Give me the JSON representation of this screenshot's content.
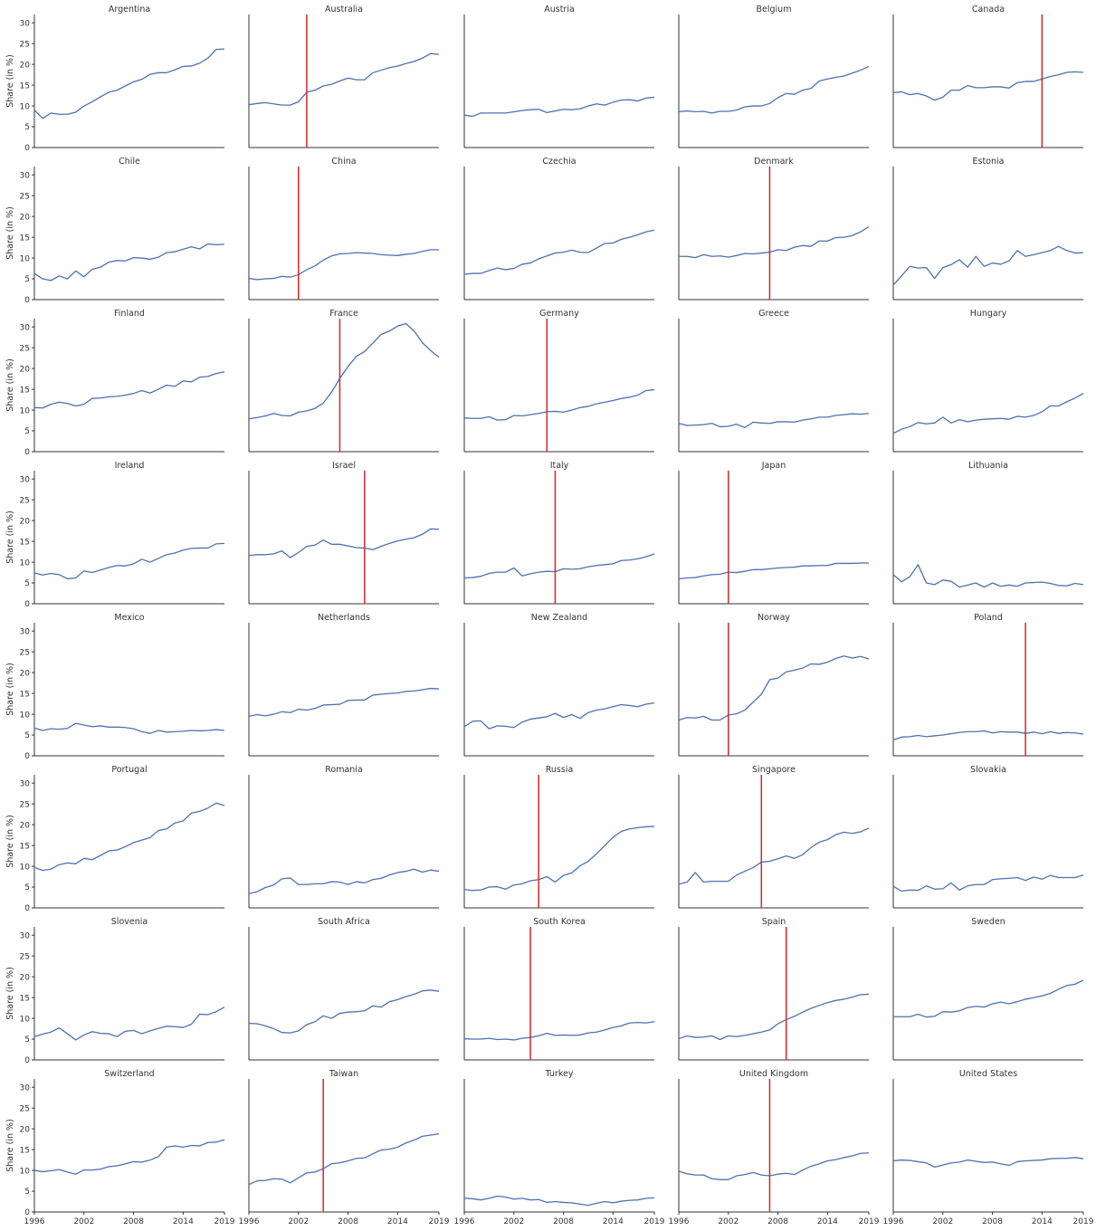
{
  "chart_data": {
    "type": "line",
    "layout": "small-multiples",
    "title": "",
    "xlabel": "",
    "ylabel": "Share (in %)",
    "xlim": [
      1996,
      2019
    ],
    "ylim": [
      0,
      32
    ],
    "xticks": [
      1996,
      2002,
      2008,
      2014,
      2019
    ],
    "yticks": [
      0,
      5,
      10,
      15,
      20,
      25,
      30
    ],
    "grid": false,
    "colors": {
      "line": "#4c72b0",
      "marker_line": "#d62728",
      "axis": "#333333",
      "text": "#333333"
    },
    "x": [
      1996,
      1997,
      1998,
      1999,
      2000,
      2001,
      2002,
      2003,
      2004,
      2005,
      2006,
      2007,
      2008,
      2009,
      2010,
      2011,
      2012,
      2013,
      2014,
      2015,
      2016,
      2017,
      2018,
      2019
    ],
    "panels": [
      {
        "name": "Argentina",
        "marker_year": null,
        "values": [
          9.0,
          7.0,
          8.3,
          8.0,
          8.0,
          8.5,
          10.0,
          11.0,
          12.2,
          13.3,
          13.8,
          14.8,
          15.8,
          16.4,
          17.6,
          18.0,
          18.0,
          18.7,
          19.5,
          19.6,
          20.3,
          21.5,
          23.6,
          23.7
        ]
      },
      {
        "name": "Australia",
        "marker_year": 2003,
        "values": [
          10.3,
          10.6,
          10.8,
          10.5,
          10.2,
          10.2,
          11.0,
          13.3,
          13.8,
          14.8,
          15.2,
          16.0,
          16.7,
          16.3,
          16.3,
          18.0,
          18.6,
          19.2,
          19.6,
          20.2,
          20.7,
          21.5,
          22.6,
          22.4
        ]
      },
      {
        "name": "Austria",
        "marker_year": null,
        "values": [
          7.8,
          7.5,
          8.3,
          8.3,
          8.3,
          8.3,
          8.6,
          8.9,
          9.1,
          9.2,
          8.4,
          8.8,
          9.2,
          9.1,
          9.3,
          10.0,
          10.5,
          10.2,
          10.9,
          11.4,
          11.5,
          11.2,
          11.9,
          12.1
        ]
      },
      {
        "name": "Belgium",
        "marker_year": null,
        "values": [
          8.6,
          8.8,
          8.6,
          8.7,
          8.3,
          8.7,
          8.7,
          9.0,
          9.8,
          10.0,
          10.0,
          10.6,
          12.0,
          13.0,
          12.8,
          13.8,
          14.2,
          16.0,
          16.5,
          16.9,
          17.2,
          17.9,
          18.6,
          19.5
        ]
      },
      {
        "name": "Canada",
        "marker_year": 2014,
        "values": [
          13.2,
          13.4,
          12.7,
          13.0,
          12.4,
          11.4,
          12.1,
          13.8,
          13.8,
          14.9,
          14.4,
          14.4,
          14.6,
          14.6,
          14.3,
          15.6,
          15.9,
          15.9,
          16.5,
          17.1,
          17.5,
          18.1,
          18.2,
          18.1
        ]
      },
      {
        "name": "Chile",
        "marker_year": null,
        "values": [
          6.3,
          5.0,
          4.6,
          5.7,
          5.0,
          6.9,
          5.5,
          7.3,
          7.8,
          9.0,
          9.4,
          9.3,
          10.1,
          10.0,
          9.7,
          10.2,
          11.3,
          11.5,
          12.1,
          12.7,
          12.2,
          13.4,
          13.2,
          13.3
        ]
      },
      {
        "name": "China",
        "marker_year": 2002,
        "values": [
          5.1,
          4.8,
          5.0,
          5.1,
          5.6,
          5.4,
          6.0,
          7.2,
          8.1,
          9.5,
          10.5,
          11.0,
          11.1,
          11.3,
          11.2,
          11.1,
          10.8,
          10.7,
          10.6,
          10.9,
          11.1,
          11.6,
          12.0,
          12.0
        ]
      },
      {
        "name": "Czechia",
        "marker_year": null,
        "values": [
          6.1,
          6.3,
          6.3,
          7.0,
          7.6,
          7.2,
          7.5,
          8.5,
          8.8,
          9.8,
          10.5,
          11.2,
          11.4,
          11.9,
          11.4,
          11.3,
          12.4,
          13.5,
          13.6,
          14.5,
          15.0,
          15.6,
          16.3,
          16.7
        ]
      },
      {
        "name": "Denmark",
        "marker_year": 2007,
        "values": [
          10.4,
          10.4,
          10.1,
          10.8,
          10.4,
          10.5,
          10.2,
          10.6,
          11.1,
          11.0,
          11.2,
          11.4,
          12.0,
          11.8,
          12.6,
          13.0,
          12.8,
          14.1,
          14.1,
          14.9,
          15.0,
          15.4,
          16.3,
          17.5
        ]
      },
      {
        "name": "Estonia",
        "marker_year": null,
        "values": [
          3.5,
          5.7,
          8.0,
          7.6,
          7.7,
          5.1,
          7.7,
          8.4,
          9.6,
          7.8,
          10.4,
          8.0,
          8.8,
          8.5,
          9.3,
          11.8,
          10.4,
          10.8,
          11.3,
          11.8,
          12.8,
          11.8,
          11.2,
          11.3
        ]
      },
      {
        "name": "Finland",
        "marker_year": null,
        "values": [
          10.6,
          10.5,
          11.4,
          11.9,
          11.6,
          11.0,
          11.4,
          12.8,
          12.9,
          13.2,
          13.3,
          13.6,
          14.0,
          14.7,
          14.1,
          15.0,
          16.0,
          15.7,
          17.0,
          16.8,
          17.9,
          18.1,
          18.8,
          19.2
        ]
      },
      {
        "name": "France",
        "marker_year": 2007,
        "values": [
          7.9,
          8.2,
          8.6,
          9.2,
          8.7,
          8.6,
          9.5,
          9.8,
          10.4,
          11.7,
          14.3,
          17.6,
          20.5,
          22.9,
          24.1,
          26.1,
          28.2,
          29.0,
          30.2,
          30.8,
          29.0,
          26.2,
          24.3,
          22.7
        ]
      },
      {
        "name": "Germany",
        "marker_year": 2006,
        "values": [
          8.1,
          8.0,
          8.0,
          8.4,
          7.6,
          7.7,
          8.7,
          8.6,
          8.9,
          9.2,
          9.6,
          9.7,
          9.5,
          10.0,
          10.6,
          10.9,
          11.5,
          11.9,
          12.3,
          12.8,
          13.1,
          13.6,
          14.7,
          14.9
        ]
      },
      {
        "name": "Greece",
        "marker_year": null,
        "values": [
          6.8,
          6.3,
          6.4,
          6.5,
          6.8,
          6.0,
          6.1,
          6.6,
          5.8,
          7.1,
          6.9,
          6.8,
          7.2,
          7.2,
          7.1,
          7.6,
          7.9,
          8.3,
          8.3,
          8.7,
          8.9,
          9.1,
          9.0,
          9.2
        ]
      },
      {
        "name": "Hungary",
        "marker_year": null,
        "values": [
          4.4,
          5.4,
          6.0,
          7.0,
          6.7,
          6.9,
          8.3,
          6.9,
          7.7,
          7.2,
          7.6,
          7.8,
          7.9,
          8.0,
          7.8,
          8.5,
          8.3,
          8.7,
          9.6,
          11.0,
          11.0,
          12.0,
          12.9,
          14.0
        ]
      },
      {
        "name": "Ireland",
        "marker_year": null,
        "values": [
          7.4,
          6.9,
          7.3,
          7.0,
          6.0,
          6.2,
          7.9,
          7.5,
          8.1,
          8.7,
          9.2,
          9.1,
          9.6,
          10.7,
          10.0,
          10.9,
          11.8,
          12.2,
          12.9,
          13.3,
          13.4,
          13.4,
          14.4,
          14.5
        ]
      },
      {
        "name": "Israel",
        "marker_year": 2010,
        "values": [
          11.6,
          11.8,
          11.8,
          12.0,
          12.7,
          11.1,
          12.3,
          13.8,
          14.1,
          15.3,
          14.3,
          14.3,
          13.9,
          13.5,
          13.4,
          13.0,
          13.8,
          14.5,
          15.1,
          15.5,
          15.9,
          16.7,
          18.0,
          17.9
        ]
      },
      {
        "name": "Italy",
        "marker_year": 2007,
        "values": [
          6.2,
          6.3,
          6.6,
          7.3,
          7.6,
          7.6,
          8.6,
          6.7,
          7.2,
          7.6,
          7.8,
          7.7,
          8.4,
          8.3,
          8.4,
          8.9,
          9.2,
          9.4,
          9.6,
          10.4,
          10.5,
          10.8,
          11.3,
          12.0
        ]
      },
      {
        "name": "Japan",
        "marker_year": 2002,
        "values": [
          6.0,
          6.2,
          6.3,
          6.7,
          7.0,
          7.1,
          7.6,
          7.5,
          7.8,
          8.2,
          8.2,
          8.4,
          8.6,
          8.7,
          8.8,
          9.1,
          9.1,
          9.2,
          9.2,
          9.7,
          9.7,
          9.7,
          9.8,
          9.8
        ]
      },
      {
        "name": "Lithuania",
        "marker_year": null,
        "values": [
          7.0,
          5.3,
          6.5,
          9.4,
          5.0,
          4.6,
          5.7,
          5.4,
          4.0,
          4.5,
          5.0,
          4.0,
          5.0,
          4.2,
          4.5,
          4.2,
          5.0,
          5.1,
          5.2,
          4.9,
          4.4,
          4.3,
          4.9,
          4.6
        ]
      },
      {
        "name": "Mexico",
        "marker_year": null,
        "values": [
          6.7,
          6.1,
          6.5,
          6.4,
          6.6,
          7.8,
          7.4,
          7.0,
          7.2,
          6.9,
          6.9,
          6.8,
          6.5,
          5.8,
          5.4,
          6.1,
          5.7,
          5.8,
          5.9,
          6.1,
          6.0,
          6.1,
          6.3,
          6.1
        ]
      },
      {
        "name": "Netherlands",
        "marker_year": null,
        "values": [
          9.5,
          9.9,
          9.6,
          10.0,
          10.6,
          10.4,
          11.2,
          11.0,
          11.4,
          12.2,
          12.3,
          12.4,
          13.3,
          13.4,
          13.4,
          14.6,
          14.8,
          15.0,
          15.1,
          15.5,
          15.6,
          15.9,
          16.2,
          16.1
        ]
      },
      {
        "name": "New Zealand",
        "marker_year": null,
        "values": [
          7.0,
          8.3,
          8.4,
          6.5,
          7.2,
          7.1,
          6.8,
          8.1,
          8.8,
          9.1,
          9.4,
          10.2,
          9.2,
          9.9,
          9.0,
          10.4,
          11.0,
          11.3,
          11.8,
          12.3,
          12.1,
          11.8,
          12.4,
          12.7
        ]
      },
      {
        "name": "Norway",
        "marker_year": 2002,
        "values": [
          8.6,
          9.2,
          9.1,
          9.5,
          8.6,
          8.6,
          9.8,
          10.1,
          11.0,
          12.9,
          14.8,
          18.3,
          18.7,
          20.2,
          20.6,
          21.1,
          22.1,
          22.0,
          22.5,
          23.4,
          24.0,
          23.5,
          23.9,
          23.3
        ]
      },
      {
        "name": "Poland",
        "marker_year": 2012,
        "values": [
          3.8,
          4.5,
          4.6,
          4.9,
          4.6,
          4.8,
          5.0,
          5.3,
          5.6,
          5.8,
          5.8,
          6.0,
          5.5,
          5.8,
          5.7,
          5.7,
          5.4,
          5.7,
          5.3,
          5.8,
          5.4,
          5.6,
          5.5,
          5.2
        ]
      },
      {
        "name": "Portugal",
        "marker_year": null,
        "values": [
          9.7,
          9.0,
          9.3,
          10.4,
          10.8,
          10.6,
          11.9,
          11.6,
          12.6,
          13.7,
          13.9,
          14.7,
          15.7,
          16.3,
          16.9,
          18.6,
          19.0,
          20.4,
          20.9,
          22.8,
          23.2,
          24.0,
          25.2,
          24.6
        ]
      },
      {
        "name": "Romania",
        "marker_year": null,
        "values": [
          3.4,
          3.9,
          4.9,
          5.5,
          7.0,
          7.2,
          5.6,
          5.6,
          5.8,
          5.8,
          6.3,
          6.2,
          5.6,
          6.3,
          6.0,
          6.8,
          7.1,
          7.9,
          8.5,
          8.8,
          9.3,
          8.6,
          9.1,
          8.8
        ]
      },
      {
        "name": "Russia",
        "marker_year": 2005,
        "values": [
          4.4,
          4.2,
          4.3,
          5.0,
          5.1,
          4.5,
          5.5,
          5.8,
          6.5,
          6.8,
          7.5,
          6.2,
          7.8,
          8.4,
          10.1,
          11.2,
          13.0,
          15.0,
          17.0,
          18.4,
          19.0,
          19.3,
          19.5,
          19.6
        ]
      },
      {
        "name": "Singapore",
        "marker_year": 2006,
        "values": [
          5.7,
          6.2,
          8.5,
          6.2,
          6.4,
          6.4,
          6.4,
          7.9,
          8.8,
          9.7,
          11.0,
          11.2,
          11.8,
          12.5,
          11.9,
          12.8,
          14.5,
          15.8,
          16.4,
          17.6,
          18.2,
          17.9,
          18.3,
          19.2
        ]
      },
      {
        "name": "Slovakia",
        "marker_year": null,
        "values": [
          5.2,
          4.0,
          4.3,
          4.2,
          5.3,
          4.5,
          4.6,
          6.0,
          4.3,
          5.3,
          5.6,
          5.6,
          6.8,
          7.0,
          7.1,
          7.3,
          6.6,
          7.4,
          6.9,
          7.8,
          7.3,
          7.3,
          7.3,
          7.9
        ]
      },
      {
        "name": "Slovenia",
        "marker_year": null,
        "values": [
          5.6,
          6.2,
          6.7,
          7.7,
          6.3,
          4.8,
          6.0,
          6.8,
          6.4,
          6.3,
          5.6,
          6.9,
          7.1,
          6.3,
          7.0,
          7.6,
          8.1,
          8.0,
          7.8,
          8.6,
          11.0,
          10.9,
          11.6,
          12.7
        ]
      },
      {
        "name": "South Africa",
        "marker_year": null,
        "values": [
          8.8,
          8.7,
          8.2,
          7.5,
          6.6,
          6.5,
          7.0,
          8.5,
          9.2,
          10.6,
          10.0,
          11.2,
          11.5,
          11.6,
          11.8,
          13.0,
          12.7,
          14.0,
          14.5,
          15.2,
          15.8,
          16.6,
          16.8,
          16.5
        ]
      },
      {
        "name": "South Korea",
        "marker_year": 2004,
        "values": [
          5.1,
          5.0,
          5.0,
          5.2,
          4.9,
          5.0,
          4.8,
          5.2,
          5.4,
          5.8,
          6.4,
          5.9,
          6.0,
          5.9,
          6.0,
          6.5,
          6.7,
          7.2,
          7.8,
          8.2,
          8.9,
          9.0,
          8.9,
          9.2
        ]
      },
      {
        "name": "Spain",
        "marker_year": 2009,
        "values": [
          5.1,
          5.8,
          5.4,
          5.5,
          5.8,
          4.9,
          5.8,
          5.6,
          5.9,
          6.3,
          6.7,
          7.2,
          8.7,
          9.7,
          10.5,
          11.5,
          12.4,
          13.1,
          13.8,
          14.3,
          14.6,
          15.1,
          15.7,
          15.8
        ]
      },
      {
        "name": "Sweden",
        "marker_year": null,
        "values": [
          10.4,
          10.4,
          10.4,
          11.0,
          10.3,
          10.5,
          11.6,
          11.5,
          11.8,
          12.6,
          12.9,
          12.7,
          13.5,
          13.9,
          13.5,
          14.0,
          14.6,
          15.0,
          15.4,
          16.0,
          17.0,
          17.9,
          18.2,
          19.2
        ]
      },
      {
        "name": "Switzerland",
        "marker_year": null,
        "values": [
          10.0,
          9.7,
          9.9,
          10.2,
          9.6,
          9.1,
          10.1,
          10.1,
          10.3,
          10.9,
          11.1,
          11.6,
          12.1,
          12.0,
          12.5,
          13.3,
          15.6,
          15.9,
          15.6,
          16.0,
          15.9,
          16.7,
          16.8,
          17.4
        ]
      },
      {
        "name": "Taiwan",
        "marker_year": 2005,
        "values": [
          6.6,
          7.5,
          7.6,
          8.0,
          7.9,
          7.0,
          8.2,
          9.4,
          9.6,
          10.4,
          11.6,
          11.8,
          12.3,
          12.9,
          13.0,
          14.0,
          14.9,
          15.1,
          15.6,
          16.6,
          17.3,
          18.2,
          18.5,
          18.8
        ]
      },
      {
        "name": "Turkey",
        "marker_year": null,
        "values": [
          3.3,
          3.2,
          2.9,
          3.3,
          3.8,
          3.6,
          3.1,
          3.3,
          2.9,
          3.0,
          2.3,
          2.5,
          2.3,
          2.2,
          1.9,
          1.6,
          2.1,
          2.5,
          2.2,
          2.6,
          2.8,
          2.9,
          3.3,
          3.4
        ]
      },
      {
        "name": "United Kingdom",
        "marker_year": 2007,
        "values": [
          9.8,
          9.2,
          8.9,
          8.9,
          8.0,
          7.8,
          7.8,
          8.7,
          9.0,
          9.5,
          8.9,
          8.7,
          9.1,
          9.3,
          9.0,
          10.1,
          11.0,
          11.6,
          12.3,
          12.6,
          13.1,
          13.5,
          14.1,
          14.2
        ]
      },
      {
        "name": "United States",
        "marker_year": null,
        "values": [
          12.3,
          12.5,
          12.4,
          12.1,
          11.8,
          10.8,
          11.3,
          11.8,
          12.0,
          12.5,
          12.2,
          11.9,
          12.0,
          11.6,
          11.2,
          12.1,
          12.3,
          12.4,
          12.5,
          12.8,
          12.9,
          12.9,
          13.1,
          12.8
        ]
      }
    ]
  }
}
